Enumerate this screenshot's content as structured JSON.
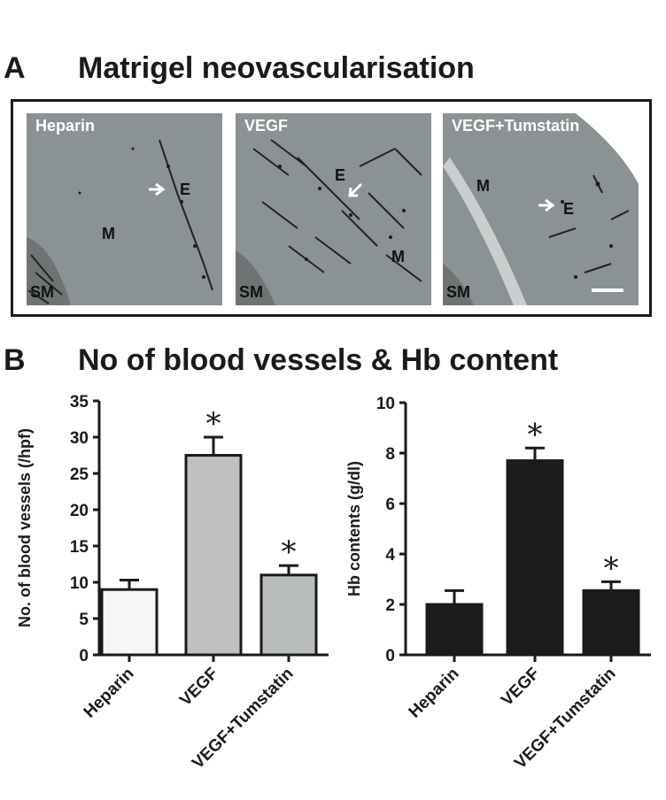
{
  "panel_a": {
    "letter": "A",
    "title": "Matrigel neovascularisation",
    "images": [
      {
        "title": "Heparin",
        "labels": {
          "e": "E",
          "m": "M",
          "sm": "SM"
        }
      },
      {
        "title": "VEGF",
        "labels": {
          "e": "E",
          "m": "M",
          "sm": "SM"
        }
      },
      {
        "title": "VEGF+Tumstatin",
        "labels": {
          "e": "E",
          "m": "M",
          "sm": "SM"
        }
      }
    ]
  },
  "panel_b": {
    "letter": "B",
    "title": "No of blood vessels & Hb content"
  },
  "chart_data": [
    {
      "type": "bar",
      "categories": [
        "Heparin",
        "VEGF",
        "VEGF+Tumstatin"
      ],
      "values": [
        9,
        27.5,
        11
      ],
      "errors": [
        1.3,
        2.5,
        1.3
      ],
      "significance": [
        "",
        "*",
        "*"
      ],
      "bar_colors": [
        "#f4f6f8",
        "#c0c0c0",
        "#b8bcbc"
      ],
      "ylabel": "No. of blood vessels (/hpf)",
      "ylim": [
        0,
        35
      ],
      "yticks": [
        "0",
        "5",
        "10",
        "15",
        "20",
        "25",
        "30",
        "35"
      ],
      "grid": false
    },
    {
      "type": "bar",
      "categories": [
        "Heparin",
        "VEGF",
        "VEGF+Tumstatin"
      ],
      "values": [
        2.0,
        7.7,
        2.55
      ],
      "errors": [
        0.55,
        0.5,
        0.35
      ],
      "significance": [
        "",
        "*",
        "*"
      ],
      "bar_colors": [
        "#1c1c1c",
        "#1c1c1c",
        "#1c1c1c"
      ],
      "ylabel": "Hb contents (g/dl)",
      "ylim": [
        0,
        10
      ],
      "yticks": [
        "0",
        "2",
        "4",
        "6",
        "8",
        "10"
      ],
      "grid": false
    }
  ]
}
